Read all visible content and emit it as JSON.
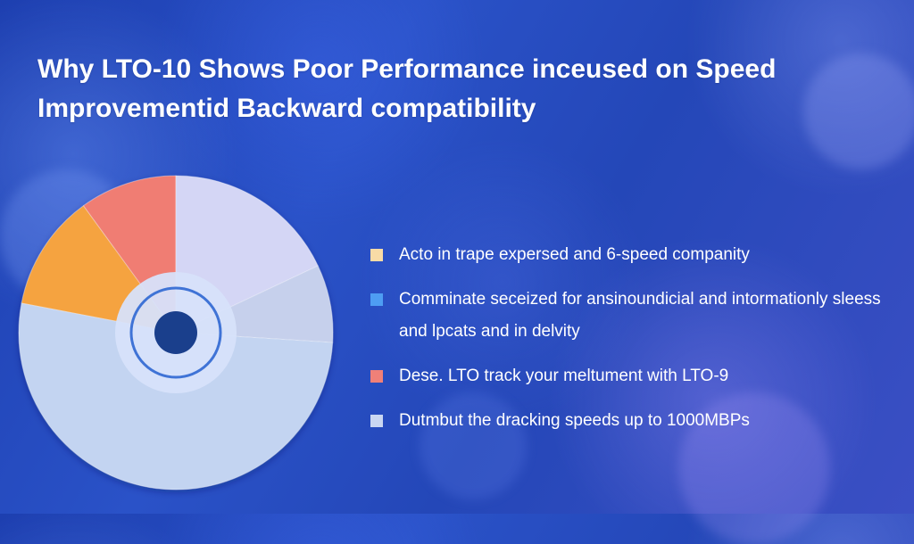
{
  "title": "Why LTO-10 Shows Poor Performance  inceused on Speed Improvementid Backward compatibility",
  "chart_data": {
    "type": "pie",
    "title": "Why LTO-10 Shows Poor Performance  inceused on Speed Improvementid Backward compatibility",
    "slices": [
      {
        "label": "",
        "value": 12,
        "color": "#f5a340"
      },
      {
        "label": "",
        "value": 10,
        "color": "#f07d73"
      },
      {
        "label": "",
        "value": 18,
        "color": "#d4d6f5"
      },
      {
        "label": "",
        "value": 8,
        "color": "#c6d0ec"
      },
      {
        "label": "",
        "value": 52,
        "color": "#c3d4f1"
      }
    ],
    "center_color": "#1a3f8c",
    "legend_placement": "right",
    "legend": [
      {
        "label": "Acto in trape expersed and 6-speed companity",
        "color": "#f8dba6"
      },
      {
        "label": "Comminate seceized for ansinoundicial and intormationly sleess and lpcats and in delvity",
        "color": "#4e9df3"
      },
      {
        "label": "Dese. LTO track your meltument with LTO-9",
        "color": "#f08078"
      },
      {
        "label": "Dutmbut the dracking speeds up to 1000MBPs",
        "color": "#c9d6f2"
      }
    ]
  }
}
